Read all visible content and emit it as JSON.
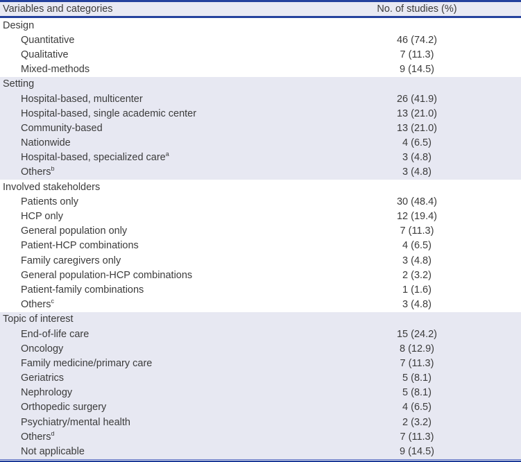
{
  "table": {
    "header": {
      "col1": "Variables and categories",
      "col2": "No. of studies (%)"
    },
    "colors": {
      "rule_navy": "#24419d",
      "band_lavender": "#e7e8f2",
      "header_lavender": "#e8e9f3",
      "bottom_rule_light_blue": "#5c6fc2",
      "bottom_rule_dark_navy": "#1e3c99",
      "text": "#3b3b3b"
    },
    "sections": [
      {
        "name": "Design",
        "rows": [
          {
            "label": "Quantitative",
            "value": "46 (74.2)"
          },
          {
            "label": "Qualitative",
            "value": "7 (11.3)"
          },
          {
            "label": "Mixed-methods",
            "value": "9 (14.5)"
          }
        ]
      },
      {
        "name": "Setting",
        "rows": [
          {
            "label": "Hospital-based, multicenter",
            "value": "26 (41.9)"
          },
          {
            "label": "Hospital-based, single academic center",
            "value": "13 (21.0)"
          },
          {
            "label": "Community-based",
            "value": "13 (21.0)"
          },
          {
            "label": "Nationwide",
            "value": "4 (6.5)"
          },
          {
            "label": "Hospital-based, specialized care",
            "sup": "a",
            "value": "3 (4.8)"
          },
          {
            "label": "Others",
            "sup": "b",
            "value": "3 (4.8)"
          }
        ]
      },
      {
        "name": "Involved stakeholders",
        "rows": [
          {
            "label": "Patients only",
            "value": "30 (48.4)"
          },
          {
            "label": "HCP only",
            "value": "12 (19.4)"
          },
          {
            "label": "General population only",
            "value": "7 (11.3)"
          },
          {
            "label": "Patient-HCP combinations",
            "value": "4 (6.5)"
          },
          {
            "label": "Family caregivers only",
            "value": "3 (4.8)"
          },
          {
            "label": "General population-HCP combinations",
            "value": "2 (3.2)"
          },
          {
            "label": "Patient-family combinations",
            "value": "1 (1.6)"
          },
          {
            "label": "Others",
            "sup": "c",
            "value": "3 (4.8)"
          }
        ]
      },
      {
        "name": "Topic of interest",
        "rows": [
          {
            "label": "End-of-life care",
            "value": "15 (24.2)"
          },
          {
            "label": "Oncology",
            "value": "8 (12.9)"
          },
          {
            "label": "Family medicine/primary care",
            "value": "7 (11.3)"
          },
          {
            "label": "Geriatrics",
            "value": "5 (8.1)"
          },
          {
            "label": "Nephrology",
            "value": "5 (8.1)"
          },
          {
            "label": "Orthopedic surgery",
            "value": "4 (6.5)"
          },
          {
            "label": "Psychiatry/mental health",
            "value": "2 (3.2)"
          },
          {
            "label": "Others",
            "sup": "d",
            "value": "7 (11.3)"
          },
          {
            "label": "Not applicable",
            "value": "9 (14.5)"
          }
        ]
      }
    ]
  }
}
